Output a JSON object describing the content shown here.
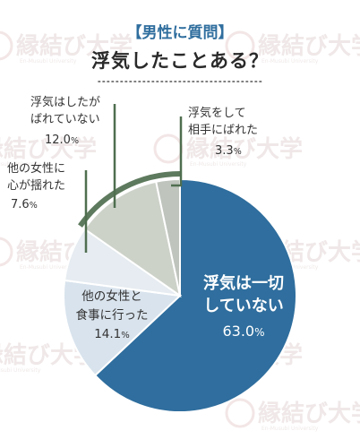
{
  "header": {
    "tag": "【男性に質問】",
    "title": "浮気したことある？"
  },
  "watermark": {
    "text": "縁結び大学",
    "sub": "En-Musubi University"
  },
  "colors": {
    "accent": "#2f6e9e",
    "outer_ring": "#5e7a5e",
    "leader": "#4f6e4f"
  },
  "chart_data": {
    "type": "pie",
    "title": "浮気したことある？",
    "unit": "%",
    "slices": [
      {
        "lines": [
          "浮気は一切",
          "していない"
        ],
        "value": 63.0,
        "value_text": "63.0",
        "color": "#2f6e9e"
      },
      {
        "lines": [
          "他の女性と",
          "食事に行った"
        ],
        "value": 14.1,
        "value_text": "14.1",
        "color": "#d8e3ed"
      },
      {
        "lines": [
          "他の女性に",
          "心が揺れた"
        ],
        "value": 7.6,
        "value_text": "7.6",
        "color": "#e6ecf1"
      },
      {
        "lines": [
          "浮気はしたが",
          "ばれていない"
        ],
        "value": 12.0,
        "value_text": "12.0",
        "color": "#cdd2c9"
      },
      {
        "lines": [
          "浮気をして",
          "相手にばれた"
        ],
        "value": 3.3,
        "value_text": "3.3",
        "color": "#bfc4bd"
      }
    ]
  }
}
